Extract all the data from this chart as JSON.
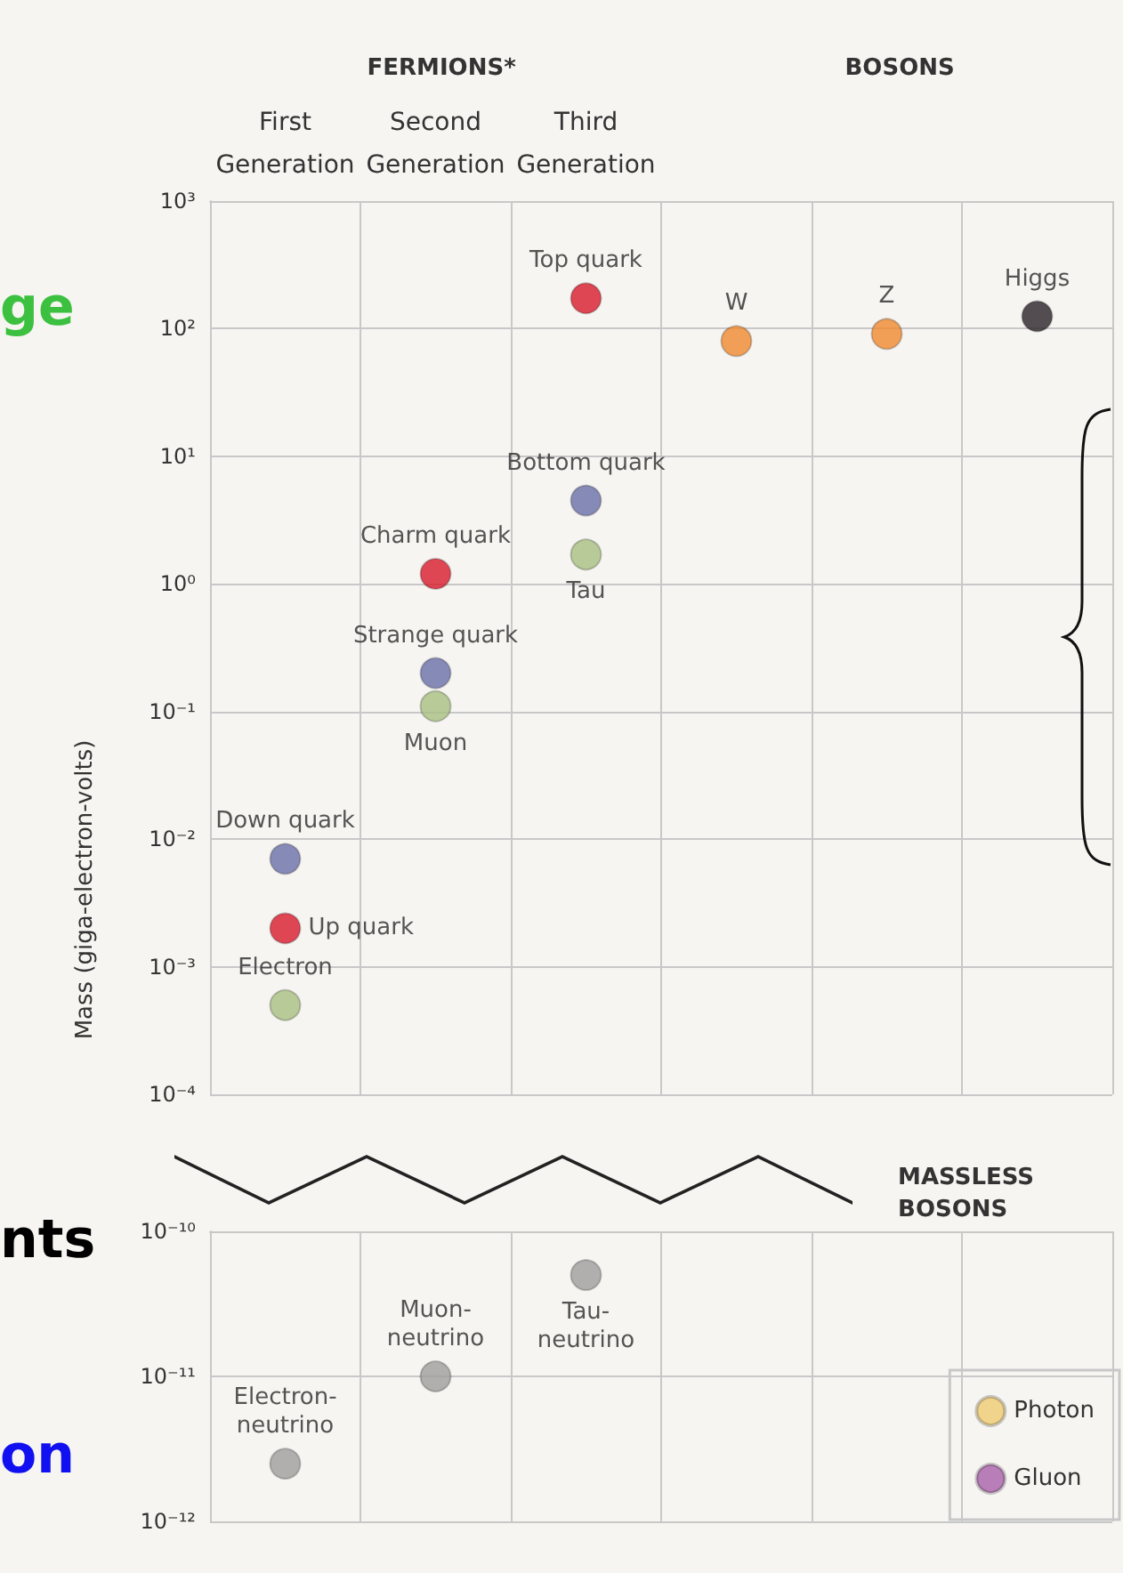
{
  "chart_data": [
    {
      "type": "scatter",
      "ylabel": "Mass (giga-electron-volts)",
      "categories": [
        "First\nGeneration",
        "Second\nGeneration",
        "Third\nGeneration",
        null,
        null,
        null
      ],
      "annotations": [
        "FERMIONS*",
        "BOSONS",
        "ge"
      ],
      "log": "y",
      "ylim": [
        0.0001,
        1000
      ],
      "yticks": [
        {
          "value": 1000,
          "label": "10³"
        },
        {
          "value": 100,
          "label": "10²"
        },
        {
          "value": 10,
          "label": "10¹"
        },
        {
          "value": 1,
          "label": "10⁰"
        },
        {
          "value": 0.1,
          "label": "10⁻¹"
        },
        {
          "value": 0.01,
          "label": "10⁻²"
        },
        {
          "value": 0.001,
          "label": "10⁻³"
        },
        {
          "value": 0.0001,
          "label": "10⁻⁴"
        }
      ],
      "grid": true,
      "marker": "circle",
      "legend": false,
      "series": [
        {
          "name": "Up quark",
          "color": "#d81a2c",
          "values": [
            0.002,
            null,
            null,
            null,
            null,
            null
          ]
        },
        {
          "name": "Down quark",
          "color": "#6a6fa8",
          "values": [
            0.007,
            null,
            null,
            null,
            null,
            null
          ]
        },
        {
          "name": "Electron",
          "color": "#a8bf80",
          "values": [
            0.0005,
            null,
            null,
            null,
            null,
            null
          ]
        },
        {
          "name": "Charm quark",
          "color": "#d81a2c",
          "values": [
            null,
            1.2,
            null,
            null,
            null,
            null
          ]
        },
        {
          "name": "Strange quark",
          "color": "#6a6fa8",
          "values": [
            null,
            0.2,
            null,
            null,
            null,
            null
          ]
        },
        {
          "name": "Muon",
          "color": "#a8bf80",
          "values": [
            null,
            0.11,
            null,
            null,
            null,
            null
          ]
        },
        {
          "name": "Top quark",
          "color": "#d81a2c",
          "values": [
            null,
            null,
            173,
            null,
            null,
            null
          ]
        },
        {
          "name": "Bottom quark",
          "color": "#6a6fa8",
          "values": [
            null,
            null,
            4.5,
            null,
            null,
            null
          ]
        },
        {
          "name": "Tau",
          "color": "#a8bf80",
          "values": [
            null,
            null,
            1.7,
            null,
            null,
            null
          ]
        },
        {
          "name": "W",
          "color": "#f08a30",
          "values": [
            null,
            null,
            null,
            80,
            null,
            null
          ]
        },
        {
          "name": "Z",
          "color": "#f08a30",
          "values": [
            null,
            null,
            null,
            null,
            91,
            null
          ]
        },
        {
          "name": "Higgs",
          "color": "#2a2228",
          "values": [
            null,
            null,
            null,
            null,
            null,
            125
          ]
        }
      ]
    },
    {
      "type": "scatter",
      "categories": [
        null,
        null,
        null,
        null,
        null,
        null
      ],
      "annotations": [
        "nts",
        "on"
      ],
      "legend_title": "MASSLESS BOSONS",
      "log": "y",
      "ylim": [
        1e-12,
        1e-10
      ],
      "yticks": [
        {
          "value": 1e-10,
          "label": "10⁻¹⁰"
        },
        {
          "value": 1e-11,
          "label": "10⁻¹¹"
        },
        {
          "value": 1e-12,
          "label": "10⁻¹²"
        }
      ],
      "grid": true,
      "marker": "circle",
      "legend": "bottom right",
      "series": [
        {
          "name": "Electron-\nneutrino",
          "color": "#a09c9c",
          "values": [
            2.5e-12,
            null,
            null,
            null,
            null,
            null
          ]
        },
        {
          "name": "Muon-\nneutrino",
          "color": "#a09c9c",
          "values": [
            null,
            1e-11,
            null,
            null,
            null,
            null
          ]
        },
        {
          "name": "Tau-\nneutrino",
          "color": "#a09c9c",
          "values": [
            null,
            null,
            5e-11,
            null,
            null,
            null
          ]
        },
        {
          "name": "Photon",
          "color": "#f0cc70",
          "values": [
            null,
            null,
            null,
            null,
            null,
            null
          ]
        },
        {
          "name": "Gluon",
          "color": "#a860a8",
          "values": [
            null,
            null,
            null,
            null,
            null,
            null
          ]
        }
      ]
    }
  ]
}
